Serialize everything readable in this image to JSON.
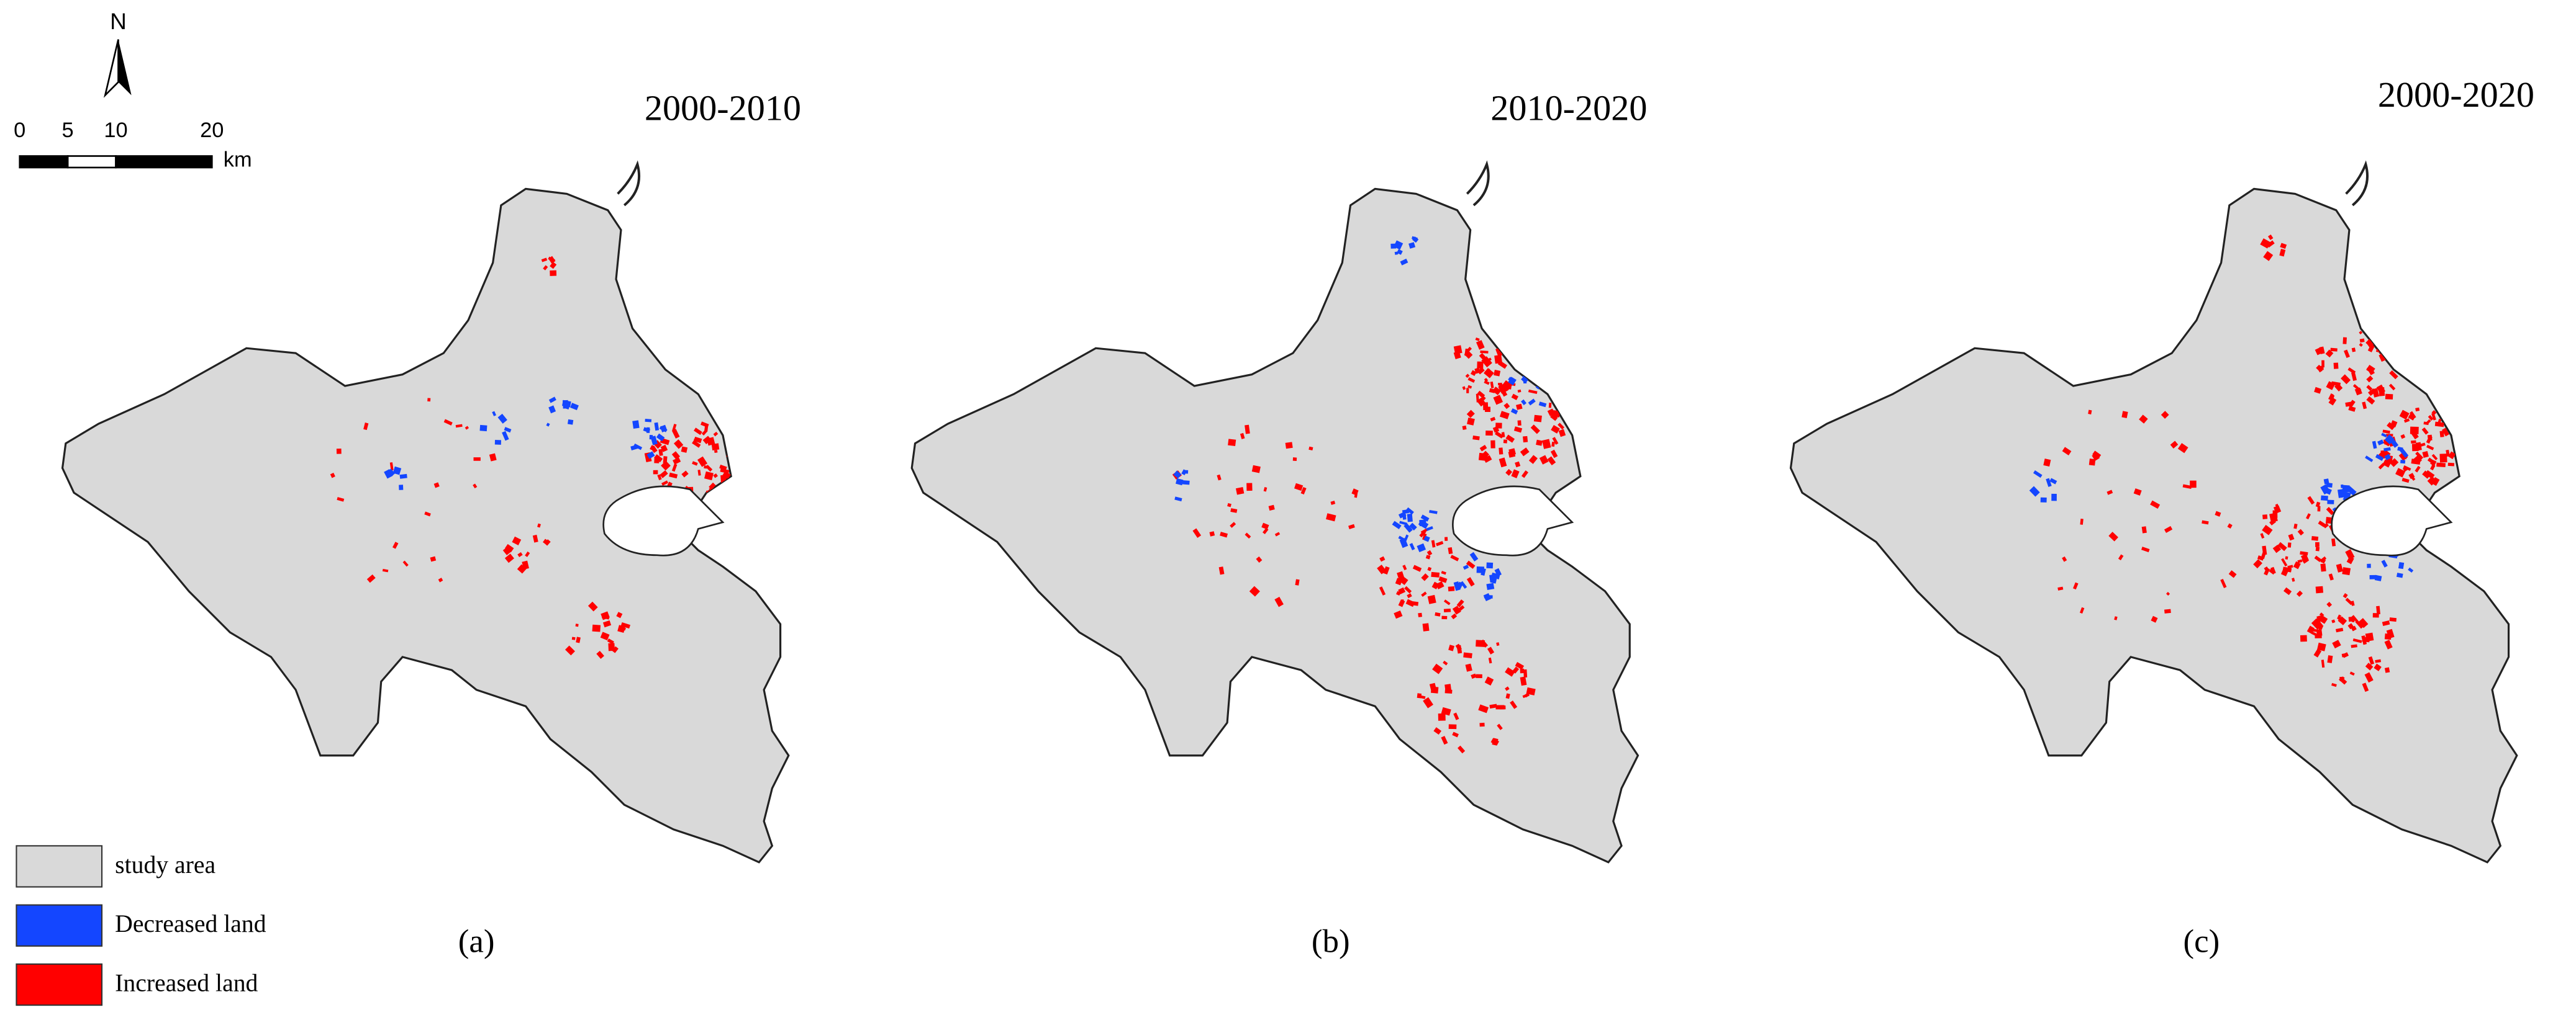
{
  "north_arrow": {
    "label": "N"
  },
  "scale_bar": {
    "ticks": [
      0,
      5,
      10,
      20
    ],
    "unit": "km"
  },
  "panels": [
    {
      "title": "2000-2010",
      "label": "(a)"
    },
    {
      "title": "2010-2020",
      "label": "(b)"
    },
    {
      "title": "2000-2020",
      "label": "(c)"
    }
  ],
  "legend": [
    {
      "label": "study area",
      "color": "#d9d9d9"
    },
    {
      "label": "Decreased land",
      "color": "#1446ff"
    },
    {
      "label": "Increased land",
      "color": "#ff0000"
    }
  ]
}
